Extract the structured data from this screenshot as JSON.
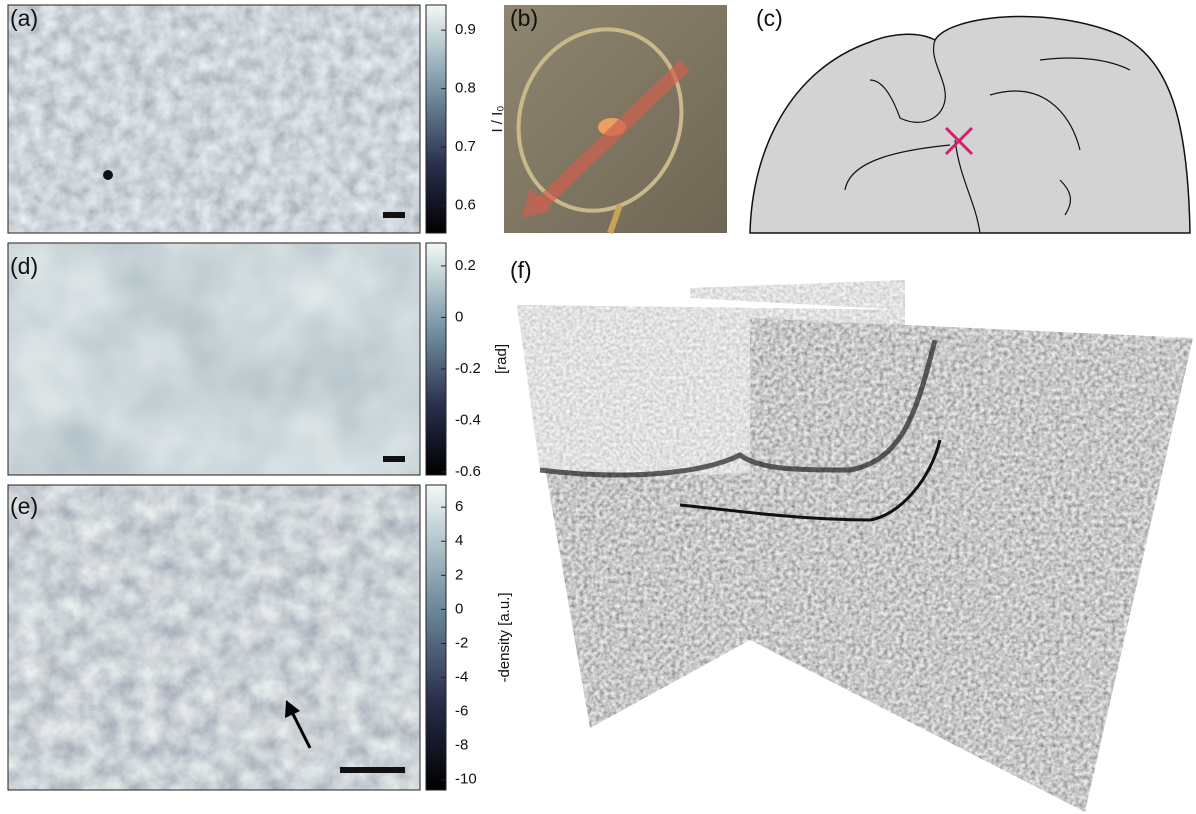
{
  "panels": [
    {
      "label": "(a)",
      "colorbar": {
        "title": "I / I₀",
        "lim": [
          0.553,
          0.943
        ],
        "ticks": [
          0.9,
          0.8,
          0.7,
          0.6
        ]
      }
    },
    {
      "label": "(b)"
    },
    {
      "label": "(c)"
    },
    {
      "label": "(d)",
      "colorbar": {
        "title": "[rad]",
        "lim": [
          -0.612,
          0.289
        ],
        "ticks": [
          0.2,
          0,
          -0.2,
          -0.4,
          -0.6
        ]
      }
    },
    {
      "label": "(e)",
      "colorbar": {
        "title": "-density [a.u.]",
        "lim": [
          -10.6,
          7.3
        ],
        "ticks": [
          6,
          4,
          2,
          0,
          -2,
          -4,
          -6,
          -8,
          -10
        ]
      }
    },
    {
      "label": "(f)"
    }
  ]
}
